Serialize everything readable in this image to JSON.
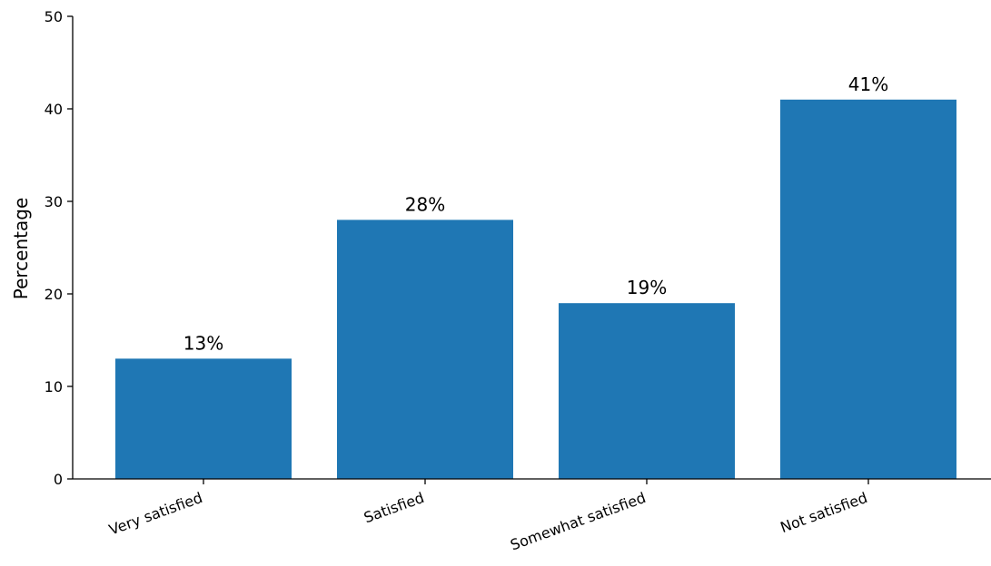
{
  "chart_data": {
    "type": "bar",
    "categories": [
      "Very satisfied",
      "Satisfied",
      "Somewhat satisfied",
      "Not satisfied"
    ],
    "values": [
      13,
      28,
      19,
      41
    ],
    "data_labels": [
      "13%",
      "28%",
      "19%",
      "41%"
    ],
    "title": "",
    "xlabel": "",
    "ylabel": "Percentage",
    "ylim": [
      0,
      50
    ],
    "yticks": [
      0,
      10,
      20,
      30,
      40,
      50
    ],
    "ytick_labels": [
      "0",
      "10",
      "20",
      "30",
      "40",
      "50"
    ],
    "grid": false,
    "bar_color": "#1f77b4",
    "x_tick_rotation_deg": 20
  }
}
